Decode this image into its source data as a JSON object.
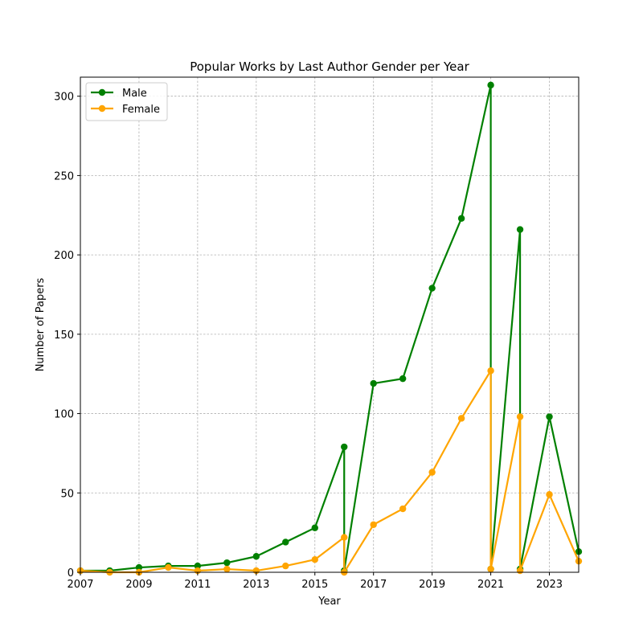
{
  "chart_data": {
    "type": "line",
    "title": "Popular Works by Last Author Gender per Year",
    "xlabel": "Year",
    "ylabel": "Number of Papers",
    "xlim": [
      2007,
      2024
    ],
    "ylim": [
      0,
      312
    ],
    "xticks": [
      2007,
      2009,
      2011,
      2013,
      2015,
      2017,
      2019,
      2021,
      2023
    ],
    "yticks": [
      0,
      50,
      100,
      150,
      200,
      250,
      300
    ],
    "grid": true,
    "legend_position": "upper-left",
    "series": [
      {
        "name": "Male",
        "color": "#008000",
        "x": [
          2007,
          2008,
          2009,
          2010,
          2011,
          2012,
          2013,
          2014,
          2015,
          2016,
          2016,
          2017,
          2018,
          2019,
          2020,
          2021,
          2021,
          2022,
          2022,
          2023,
          2024
        ],
        "y": [
          1,
          1,
          3,
          4,
          4,
          6,
          10,
          19,
          28,
          79,
          1,
          119,
          122,
          179,
          223,
          307,
          2,
          216,
          2,
          98,
          13
        ]
      },
      {
        "name": "Female",
        "color": "#ffa500",
        "x": [
          2007,
          2008,
          2009,
          2010,
          2011,
          2012,
          2013,
          2014,
          2015,
          2016,
          2016,
          2017,
          2018,
          2019,
          2020,
          2021,
          2021,
          2022,
          2022,
          2023,
          2024
        ],
        "y": [
          1,
          0,
          0,
          3,
          1,
          2,
          1,
          4,
          8,
          22,
          0,
          30,
          40,
          63,
          97,
          127,
          2,
          98,
          1,
          49,
          7
        ]
      }
    ]
  }
}
